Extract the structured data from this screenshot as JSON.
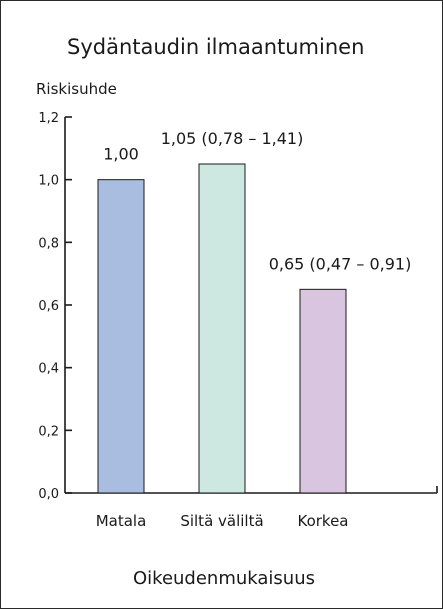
{
  "chart_data": {
    "type": "bar",
    "title": "Sydäntaudin ilmaantuminen",
    "ylabel": "Riskisuhde",
    "xlabel": "Oikeudenmukaisuus",
    "categories": [
      "Matala",
      "Siltä väliltä",
      "Korkea"
    ],
    "values": [
      1.0,
      1.05,
      0.65
    ],
    "value_labels": [
      "1,00",
      "1,05 (0,78 – 1,41)",
      "0,65 (0,47 – 0,91)"
    ],
    "bar_colors": [
      "#a9bde0",
      "#cde8e1",
      "#dac5e0"
    ],
    "ylim": [
      0,
      1.2
    ],
    "yticks": [
      0,
      0.2,
      0.4,
      0.6,
      0.8,
      1.0,
      1.2
    ],
    "ytick_labels": [
      "0,0",
      "0,2",
      "0,4",
      "0,6",
      "0,8",
      "1,0",
      "1,2"
    ],
    "grid": false,
    "legend": "none"
  }
}
